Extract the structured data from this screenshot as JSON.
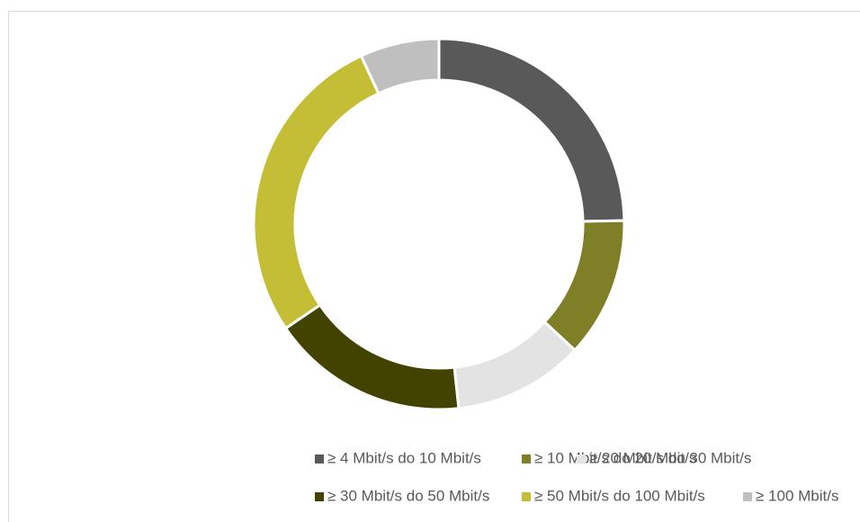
{
  "chart_data": {
    "type": "donut",
    "categories": [
      "≥ 4 Mbit/s do 10 Mbit/s",
      "≥ 10 Mbit/s do 20 Mbit/s",
      "≥ 20 Mbit/s do 30 Mbit/s",
      "≥ 30 Mbit/s do 50 Mbit/s",
      "≥ 50 Mbit/s do 100 Mbit/s",
      "≥ 100 Mbit/s"
    ],
    "values": [
      24.7,
      12.2,
      11.4,
      17.2,
      27.6,
      6.9
    ],
    "colors": [
      "#595959",
      "#7f7f27",
      "#e3e3e3",
      "#434300",
      "#c4be37",
      "#bfbfbf"
    ],
    "legend": "bottom"
  }
}
